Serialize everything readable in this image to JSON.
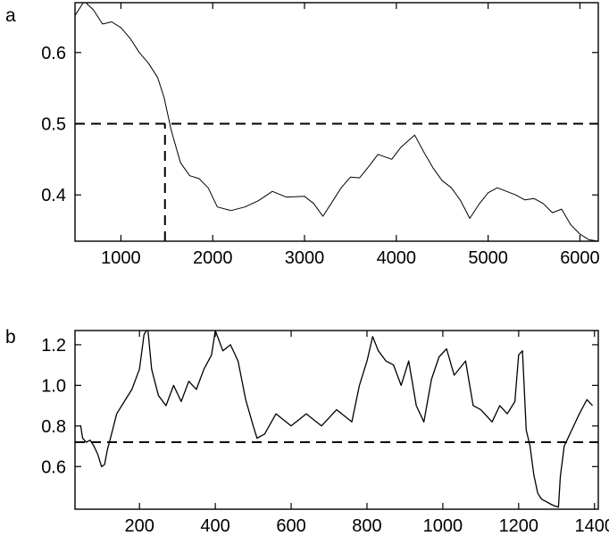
{
  "chart_data": [
    {
      "panel_label": "a",
      "type": "line",
      "xlim": [
        500,
        6200
      ],
      "ylim": [
        0.335,
        0.67
      ],
      "xticks": [
        1000,
        2000,
        3000,
        4000,
        5000,
        6000
      ],
      "yticks": [
        0.4,
        0.5,
        0.6
      ],
      "xtick_labels": [
        "1000",
        "2000",
        "3000",
        "4000",
        "5000",
        "6000"
      ],
      "ytick_labels": [
        "0.4",
        "0.5",
        "0.6"
      ],
      "grid": false,
      "series": [
        {
          "x": [
            500,
            600,
            700,
            800,
            900,
            1000,
            1100,
            1200,
            1300,
            1400,
            1470,
            1550,
            1650,
            1750,
            1850,
            1950,
            2050,
            2200,
            2350,
            2500,
            2650,
            2800,
            3000,
            3100,
            3200,
            3300,
            3400,
            3500,
            3600,
            3700,
            3800,
            3950,
            4050,
            4200,
            4300,
            4400,
            4500,
            4600,
            4700,
            4800,
            4900,
            5000,
            5100,
            5300,
            5400,
            5500,
            5600,
            5700,
            5800,
            5900,
            6000,
            6100,
            6200
          ],
          "y": [
            0.652,
            0.672,
            0.66,
            0.64,
            0.643,
            0.635,
            0.62,
            0.6,
            0.585,
            0.565,
            0.537,
            0.49,
            0.445,
            0.427,
            0.423,
            0.41,
            0.383,
            0.378,
            0.383,
            0.392,
            0.405,
            0.397,
            0.398,
            0.388,
            0.37,
            0.39,
            0.41,
            0.425,
            0.424,
            0.44,
            0.457,
            0.45,
            0.467,
            0.484,
            0.46,
            0.438,
            0.42,
            0.41,
            0.392,
            0.367,
            0.387,
            0.403,
            0.41,
            0.4,
            0.393,
            0.395,
            0.388,
            0.375,
            0.38,
            0.358,
            0.345,
            0.337,
            0.335
          ]
        }
      ],
      "reference_lines": [
        {
          "orientation": "horizontal",
          "y": 0.5,
          "x_range": [
            500,
            6200
          ],
          "style": "dashed"
        },
        {
          "orientation": "vertical",
          "x": 1480,
          "y_range": [
            0.335,
            0.5
          ],
          "style": "dashed"
        }
      ]
    },
    {
      "panel_label": "b",
      "type": "line",
      "xlim": [
        30,
        1410
      ],
      "ylim": [
        0.39,
        1.27
      ],
      "xticks": [
        200,
        400,
        600,
        800,
        1000,
        1200,
        1400
      ],
      "yticks": [
        0.6,
        0.8,
        1.0,
        1.2
      ],
      "xtick_labels": [
        "200",
        "400",
        "600",
        "800",
        "1000",
        "1200",
        "1400"
      ],
      "ytick_labels": [
        "0.6",
        "0.8",
        "1.0",
        "1.2"
      ],
      "grid": false,
      "series": [
        {
          "x": [
            45,
            50,
            60,
            70,
            80,
            90,
            100,
            108,
            115,
            125,
            140,
            160,
            180,
            200,
            212,
            222,
            232,
            250,
            270,
            290,
            310,
            330,
            350,
            370,
            390,
            400,
            420,
            440,
            460,
            480,
            500,
            510,
            530,
            560,
            600,
            640,
            680,
            720,
            760,
            780,
            800,
            815,
            830,
            850,
            870,
            890,
            910,
            930,
            950,
            970,
            990,
            1010,
            1030,
            1060,
            1080,
            1100,
            1130,
            1150,
            1170,
            1190,
            1200,
            1210,
            1220,
            1230,
            1240,
            1250,
            1260,
            1270,
            1290,
            1305,
            1310,
            1320,
            1340,
            1360,
            1380,
            1395
          ],
          "y": [
            0.8,
            0.74,
            0.72,
            0.73,
            0.7,
            0.66,
            0.6,
            0.61,
            0.68,
            0.75,
            0.86,
            0.92,
            0.98,
            1.08,
            1.25,
            1.28,
            1.08,
            0.95,
            0.9,
            1.0,
            0.92,
            1.02,
            0.98,
            1.08,
            1.15,
            1.27,
            1.17,
            1.2,
            1.12,
            0.93,
            0.8,
            0.74,
            0.76,
            0.86,
            0.8,
            0.86,
            0.8,
            0.88,
            0.82,
            1.0,
            1.12,
            1.24,
            1.17,
            1.12,
            1.1,
            1.0,
            1.12,
            0.9,
            0.82,
            1.03,
            1.14,
            1.18,
            1.05,
            1.12,
            0.9,
            0.88,
            0.82,
            0.9,
            0.86,
            0.92,
            1.15,
            1.17,
            0.78,
            0.7,
            0.56,
            0.47,
            0.44,
            0.43,
            0.41,
            0.4,
            0.55,
            0.7,
            0.78,
            0.86,
            0.93,
            0.9
          ]
        }
      ],
      "reference_lines": [
        {
          "orientation": "horizontal",
          "y": 0.72,
          "x_range": [
            30,
            1410
          ],
          "style": "dashed"
        }
      ]
    }
  ]
}
